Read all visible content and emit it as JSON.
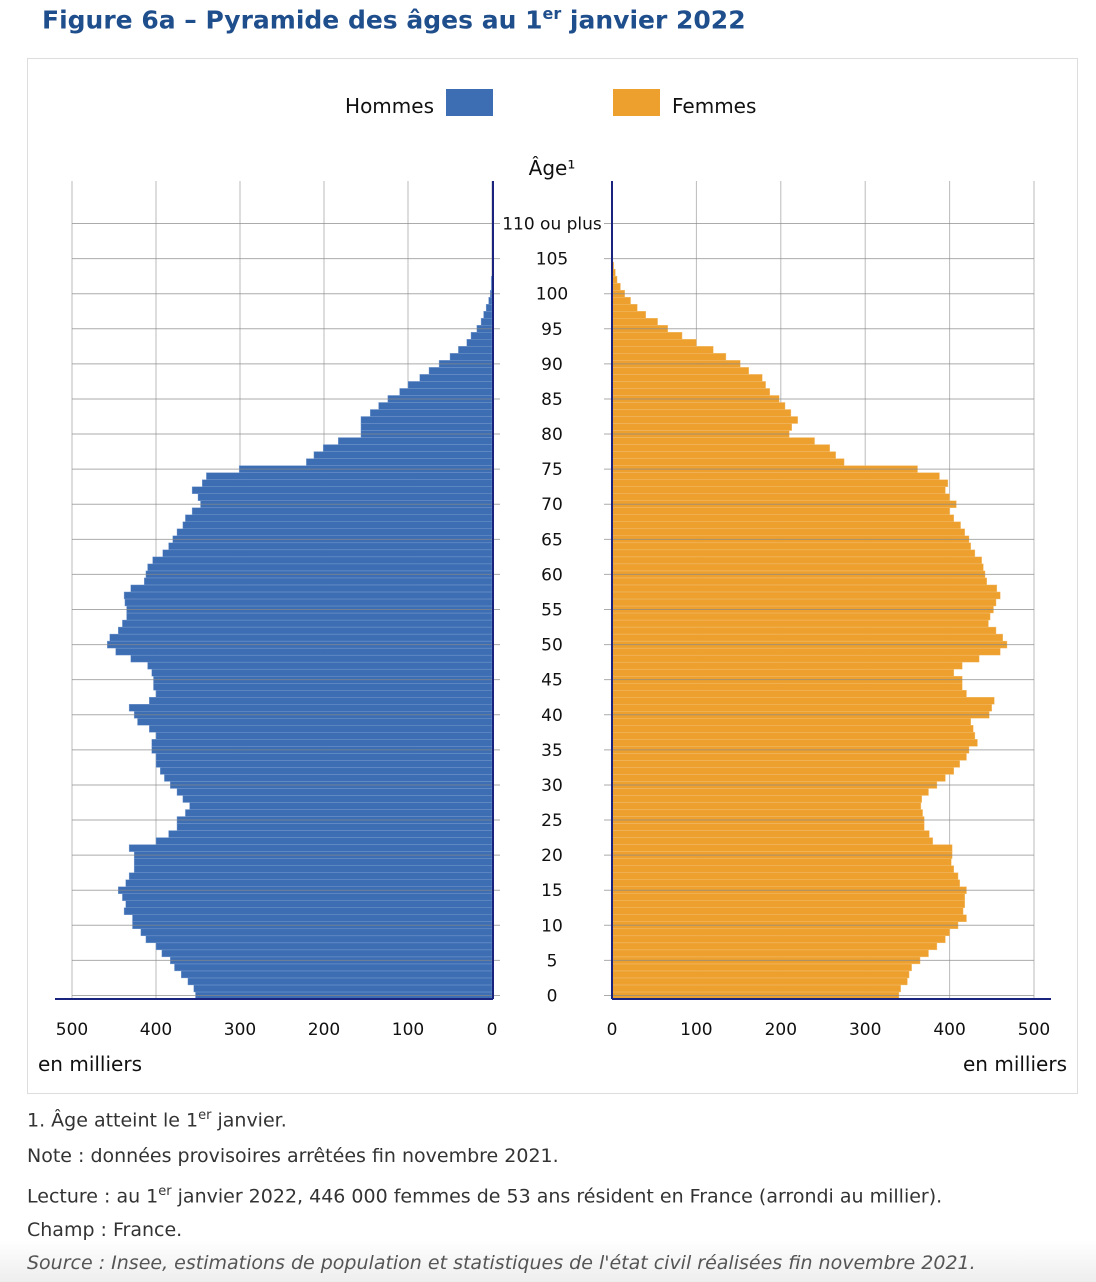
{
  "title": {
    "main": "Figure 6a – Pyramide des âges au 1",
    "sup": "er",
    "rest": " janvier 2022"
  },
  "notes": {
    "n1a": "1. Âge atteint le 1",
    "n1sup": "er",
    "n1b": " janvier.",
    "note": "Note : données provisoires arrêtées fin novembre 2021.",
    "lecA": "Lecture : au 1",
    "lecSup": "er",
    "lecB": " janvier 2022, 446 000 femmes de 53 ans résident en France (arrondi au millier).",
    "champ": "Champ : France.",
    "source": "Source : Insee, estimations de population et statistiques de l'état civil réalisées fin novembre 2021."
  },
  "chart_data": {
    "type": "bar",
    "orientation": "horizontal-pyramid",
    "ylabel": "Âge¹",
    "xlabel": "en milliers",
    "xlim": [
      0,
      500
    ],
    "xticks": [
      0,
      100,
      200,
      300,
      400,
      500
    ],
    "age_tick_labels": [
      "0",
      "5",
      "10",
      "15",
      "20",
      "25",
      "30",
      "35",
      "40",
      "45",
      "50",
      "55",
      "60",
      "65",
      "70",
      "75",
      "80",
      "85",
      "90",
      "95",
      "100",
      "105",
      "110 ou plus"
    ],
    "grid": true,
    "legend": "top",
    "series": [
      {
        "name": "Hommes",
        "color": "#3d6eb4",
        "values": [
          353,
          355,
          362,
          370,
          378,
          383,
          393,
          400,
          412,
          418,
          428,
          428,
          438,
          436,
          440,
          445,
          436,
          432,
          426,
          426,
          426,
          432,
          400,
          385,
          375,
          375,
          365,
          360,
          368,
          375,
          383,
          390,
          395,
          400,
          400,
          405,
          405,
          400,
          408,
          422,
          426,
          432,
          408,
          400,
          403,
          403,
          405,
          410,
          430,
          448,
          458,
          455,
          445,
          440,
          435,
          435,
          437,
          438,
          430,
          414,
          412,
          410,
          404,
          392,
          385,
          380,
          375,
          368,
          365,
          357,
          347,
          350,
          357,
          345,
          340,
          301,
          221,
          212,
          201,
          183,
          156,
          156,
          156,
          145,
          135,
          124,
          110,
          100,
          86,
          75,
          63,
          50,
          40,
          30,
          25,
          18,
          13,
          10,
          7,
          4,
          2,
          1,
          1,
          0,
          0,
          0,
          0,
          0,
          0,
          0,
          0
        ]
      },
      {
        "name": "Femmes",
        "color": "#eda02e",
        "values": [
          340,
          342,
          350,
          352,
          355,
          365,
          375,
          385,
          395,
          400,
          410,
          420,
          416,
          418,
          418,
          420,
          412,
          410,
          405,
          402,
          403,
          403,
          380,
          376,
          370,
          370,
          368,
          366,
          367,
          375,
          385,
          395,
          405,
          412,
          420,
          423,
          433,
          430,
          428,
          425,
          447,
          450,
          453,
          420,
          415,
          415,
          405,
          415,
          435,
          460,
          468,
          463,
          455,
          446,
          448,
          452,
          455,
          460,
          456,
          444,
          442,
          440,
          438,
          430,
          425,
          423,
          418,
          413,
          405,
          400,
          408,
          400,
          395,
          398,
          388,
          362,
          275,
          265,
          258,
          240,
          210,
          213,
          220,
          212,
          205,
          198,
          187,
          182,
          178,
          162,
          152,
          135,
          120,
          100,
          83,
          66,
          54,
          40,
          30,
          22,
          15,
          10,
          6,
          4,
          2,
          1,
          0,
          0,
          0,
          0,
          0
        ]
      }
    ]
  }
}
